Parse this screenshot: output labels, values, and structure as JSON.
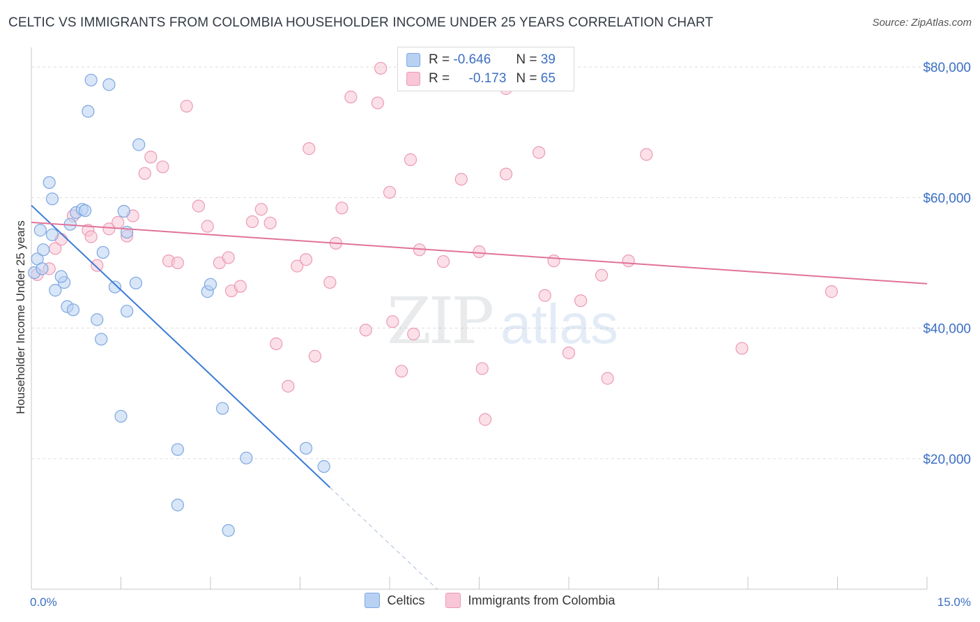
{
  "header": {
    "title": "CELTIC VS IMMIGRANTS FROM COLOMBIA HOUSEHOLDER INCOME UNDER 25 YEARS CORRELATION CHART",
    "source": "Source: ZipAtlas.com"
  },
  "watermark": {
    "zip": "ZIP",
    "atlas": "atlas"
  },
  "stats": {
    "celtics": {
      "r_label": "R =",
      "r_value": "-0.646",
      "n_label": "N =",
      "n_value": "39"
    },
    "colombia": {
      "r_label": "R =",
      "r_value": "-0.173",
      "n_label": "N =",
      "n_value": "65"
    }
  },
  "legend": {
    "celtics": "Celtics",
    "colombia": "Immigrants from Colombia"
  },
  "colors": {
    "celtics_fill": "#b8d1f3",
    "celtics_stroke": "#7da7e0",
    "celtics_line": "#3a7bd5",
    "colombia_fill": "#f8c6d6",
    "colombia_stroke": "#ec9ab5",
    "colombia_line": "#e0739a",
    "tick_text": "#3b6fc4",
    "grid": "#dddddd"
  },
  "chart_data": {
    "type": "scatter",
    "title": "CELTIC VS IMMIGRANTS FROM COLOMBIA HOUSEHOLDER INCOME UNDER 25 YEARS CORRELATION CHART",
    "xlabel": "",
    "ylabel": "Householder Income Under 25 years",
    "xlim": [
      0,
      15
    ],
    "ylim": [
      0,
      83000
    ],
    "x_tick_labels": [
      "0.0%",
      "15.0%"
    ],
    "y_ticks": [
      20000,
      40000,
      60000,
      80000
    ],
    "y_tick_labels": [
      "$20,000",
      "$40,000",
      "$60,000",
      "$80,000"
    ],
    "grid": "horizontal dashed",
    "legend_position": "bottom-center",
    "series": [
      {
        "name": "Celtics",
        "points": [
          [
            0.1,
            50600
          ],
          [
            0.05,
            48500
          ],
          [
            0.18,
            49100
          ],
          [
            0.15,
            55000
          ],
          [
            0.3,
            62300
          ],
          [
            0.35,
            59800
          ],
          [
            0.2,
            52000
          ],
          [
            0.35,
            54300
          ],
          [
            0.4,
            45800
          ],
          [
            0.55,
            47000
          ],
          [
            0.5,
            47900
          ],
          [
            0.6,
            43300
          ],
          [
            0.7,
            42800
          ],
          [
            0.65,
            55900
          ],
          [
            0.75,
            57700
          ],
          [
            0.85,
            58200
          ],
          [
            1.0,
            78000
          ],
          [
            1.3,
            77300
          ],
          [
            0.95,
            73200
          ],
          [
            1.8,
            68100
          ],
          [
            1.55,
            57900
          ],
          [
            1.6,
            54700
          ],
          [
            1.2,
            51600
          ],
          [
            1.4,
            46300
          ],
          [
            1.75,
            46900
          ],
          [
            1.1,
            41300
          ],
          [
            1.17,
            38300
          ],
          [
            1.6,
            42600
          ],
          [
            2.95,
            45600
          ],
          [
            3.0,
            46700
          ],
          [
            1.5,
            26500
          ],
          [
            3.2,
            27700
          ],
          [
            2.45,
            21400
          ],
          [
            3.6,
            20100
          ],
          [
            4.6,
            21600
          ],
          [
            4.9,
            18800
          ],
          [
            2.45,
            12900
          ],
          [
            3.3,
            9000
          ],
          [
            0.9,
            58000
          ]
        ]
      },
      {
        "name": "Immigrants from Colombia",
        "points": [
          [
            0.1,
            48200
          ],
          [
            0.4,
            52200
          ],
          [
            0.5,
            53600
          ],
          [
            0.95,
            55000
          ],
          [
            0.7,
            57200
          ],
          [
            1.0,
            54000
          ],
          [
            1.1,
            49600
          ],
          [
            1.3,
            55200
          ],
          [
            1.45,
            56200
          ],
          [
            1.6,
            54100
          ],
          [
            1.7,
            57200
          ],
          [
            1.9,
            63700
          ],
          [
            2.0,
            66200
          ],
          [
            2.2,
            64700
          ],
          [
            2.3,
            50300
          ],
          [
            2.45,
            50000
          ],
          [
            2.6,
            74000
          ],
          [
            2.8,
            58700
          ],
          [
            2.95,
            55600
          ],
          [
            3.15,
            50000
          ],
          [
            3.3,
            50800
          ],
          [
            3.35,
            45700
          ],
          [
            3.5,
            46400
          ],
          [
            3.7,
            56300
          ],
          [
            3.85,
            58200
          ],
          [
            4.0,
            56100
          ],
          [
            4.1,
            37600
          ],
          [
            4.3,
            31100
          ],
          [
            4.45,
            49500
          ],
          [
            4.6,
            50500
          ],
          [
            4.65,
            67500
          ],
          [
            4.75,
            35700
          ],
          [
            5.0,
            47000
          ],
          [
            5.1,
            53000
          ],
          [
            5.2,
            58400
          ],
          [
            5.35,
            75400
          ],
          [
            5.6,
            39700
          ],
          [
            5.8,
            74500
          ],
          [
            5.85,
            79800
          ],
          [
            6.0,
            60800
          ],
          [
            6.05,
            41000
          ],
          [
            6.2,
            33400
          ],
          [
            6.35,
            65800
          ],
          [
            6.4,
            39100
          ],
          [
            6.5,
            52000
          ],
          [
            6.9,
            50200
          ],
          [
            7.2,
            62800
          ],
          [
            7.5,
            51700
          ],
          [
            7.55,
            33800
          ],
          [
            7.6,
            26000
          ],
          [
            7.85,
            78000
          ],
          [
            7.95,
            63600
          ],
          [
            7.95,
            76700
          ],
          [
            8.5,
            66900
          ],
          [
            8.6,
            45000
          ],
          [
            8.75,
            50300
          ],
          [
            9.0,
            36200
          ],
          [
            9.2,
            44200
          ],
          [
            9.55,
            48100
          ],
          [
            9.65,
            32300
          ],
          [
            10.0,
            50300
          ],
          [
            10.3,
            66600
          ],
          [
            11.9,
            36900
          ],
          [
            13.4,
            45600
          ],
          [
            0.3,
            49100
          ]
        ]
      }
    ],
    "trend_lines": [
      {
        "series": "Celtics",
        "x": [
          0.0,
          5.0
        ],
        "y": [
          58800,
          15600
        ],
        "dashed_extension_to": [
          6.8,
          0
        ]
      },
      {
        "series": "Immigrants from Colombia",
        "x": [
          0.0,
          15.0
        ],
        "y": [
          56200,
          46800
        ]
      }
    ]
  }
}
